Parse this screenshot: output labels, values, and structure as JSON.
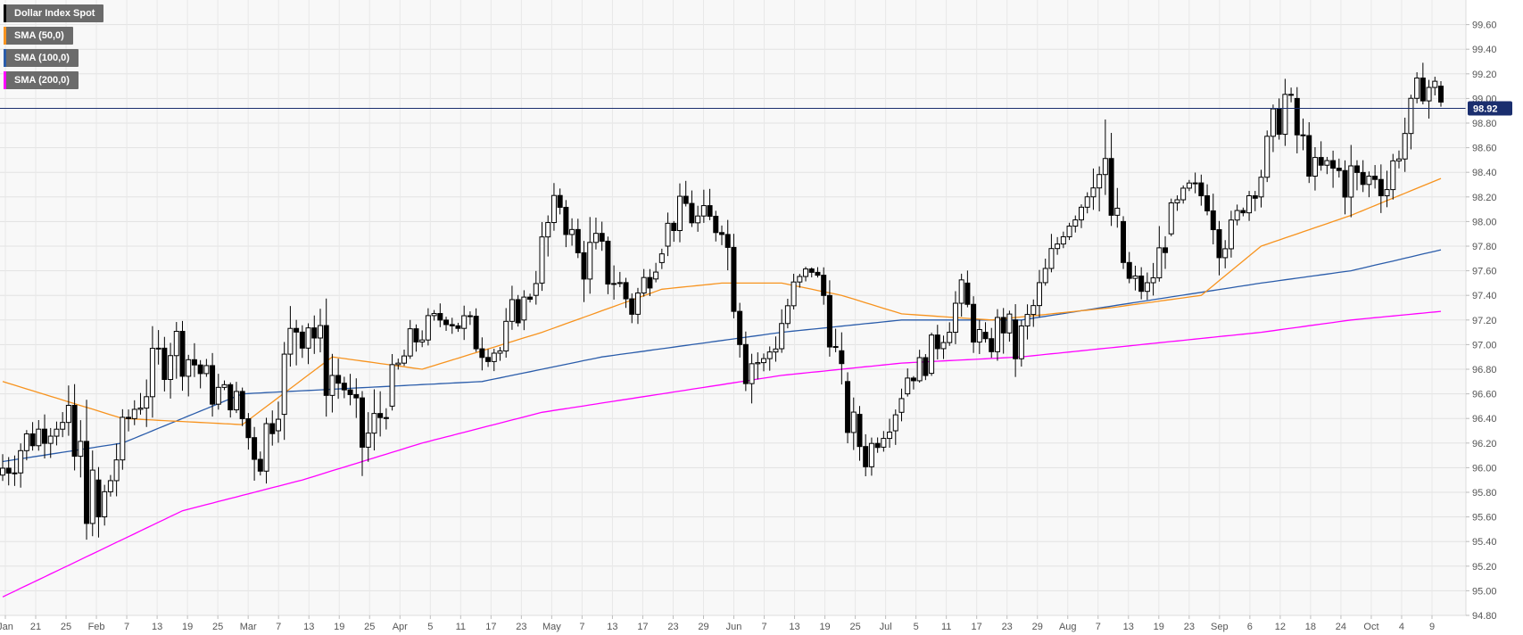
{
  "chart_data": {
    "type": "candlestick",
    "ylim": [
      94.8,
      99.8
    ],
    "ytick_labels": [
      "94.80",
      "95.00",
      "95.20",
      "95.40",
      "95.60",
      "95.80",
      "96.00",
      "96.20",
      "96.40",
      "96.60",
      "96.80",
      "97.00",
      "97.20",
      "97.40",
      "97.60",
      "97.80",
      "98.00",
      "98.20",
      "98.40",
      "98.60",
      "98.80",
      "99.00",
      "99.20",
      "99.40",
      "99.60"
    ],
    "xtick_labels": [
      "Jan",
      "21",
      "25",
      "Feb",
      "7",
      "13",
      "19",
      "25",
      "Mar",
      "7",
      "13",
      "19",
      "25",
      "Apr",
      "5",
      "11",
      "17",
      "23",
      "May",
      "7",
      "13",
      "17",
      "23",
      "29",
      "Jun",
      "7",
      "13",
      "19",
      "25",
      "Jul",
      "5",
      "11",
      "17",
      "23",
      "29",
      "Aug",
      "7",
      "13",
      "19",
      "23",
      "Sep",
      "6",
      "12",
      "18",
      "24",
      "Oct",
      "4",
      "9"
    ],
    "grid": true,
    "current_price": 98.92,
    "current_price_label": "98.92",
    "legend": [
      {
        "name": "Dollar Index Spot",
        "color": "#000000"
      },
      {
        "name": "SMA (50,0)",
        "color": "#f7931e"
      },
      {
        "name": "SMA (100,0)",
        "color": "#2a5caa"
      },
      {
        "name": "SMA (200,0)",
        "color": "#ff00ff"
      }
    ],
    "ohlc_anchors": [
      [
        0,
        95.7,
        96.3
      ],
      [
        4,
        96.0,
        96.45
      ],
      [
        9,
        96.2,
        96.6
      ],
      [
        12,
        95.4,
        96.7
      ],
      [
        14,
        95.3,
        96.5
      ],
      [
        16,
        95.2,
        95.9
      ],
      [
        19,
        95.8,
        96.4
      ],
      [
        21,
        96.2,
        96.6
      ],
      [
        26,
        96.5,
        97.2
      ],
      [
        28,
        96.7,
        97.4
      ],
      [
        32,
        96.6,
        97.1
      ],
      [
        35,
        96.4,
        96.85
      ],
      [
        39,
        96.4,
        96.7
      ],
      [
        41,
        95.9,
        96.6
      ],
      [
        43,
        95.8,
        96.5
      ],
      [
        46,
        96.3,
        96.9
      ],
      [
        49,
        96.7,
        97.7
      ],
      [
        51,
        96.9,
        97.55
      ],
      [
        54,
        96.4,
        97.2
      ],
      [
        57,
        96.5,
        96.8
      ],
      [
        60,
        95.8,
        96.6
      ],
      [
        62,
        95.9,
        96.7
      ],
      [
        65,
        96.5,
        96.9
      ],
      [
        68,
        96.8,
        97.2
      ],
      [
        71,
        97.0,
        97.3
      ],
      [
        74,
        97.1,
        97.4
      ],
      [
        77,
        96.9,
        97.4
      ],
      [
        80,
        96.8,
        97.2
      ],
      [
        83,
        96.8,
        97.1
      ],
      [
        85,
        97.0,
        97.45
      ],
      [
        88,
        97.3,
        97.5
      ],
      [
        91,
        97.6,
        98.3
      ],
      [
        93,
        98.0,
        98.3
      ],
      [
        96,
        97.4,
        98.0
      ],
      [
        99,
        97.3,
        98.1
      ],
      [
        102,
        97.3,
        97.8
      ],
      [
        105,
        97.1,
        97.5
      ],
      [
        108,
        97.4,
        97.8
      ],
      [
        111,
        97.8,
        98.1
      ],
      [
        114,
        97.9,
        98.35
      ],
      [
        117,
        97.6,
        98.25
      ],
      [
        120,
        97.8,
        98.3
      ],
      [
        122,
        97.1,
        97.9
      ],
      [
        124,
        96.5,
        97.3
      ],
      [
        127,
        96.7,
        97.0
      ],
      [
        129,
        96.8,
        97.3
      ],
      [
        132,
        97.3,
        97.6
      ],
      [
        135,
        97.5,
        97.75
      ],
      [
        137,
        97.2,
        97.6
      ],
      [
        139,
        96.6,
        97.2
      ],
      [
        141,
        96.1,
        96.7
      ],
      [
        144,
        95.9,
        96.3
      ],
      [
        146,
        96.1,
        96.4
      ],
      [
        149,
        96.3,
        96.7
      ],
      [
        151,
        96.6,
        96.9
      ],
      [
        154,
        96.7,
        97.0
      ],
      [
        157,
        96.9,
        97.4
      ],
      [
        160,
        97.2,
        97.6
      ],
      [
        162,
        96.9,
        97.4
      ],
      [
        164,
        96.8,
        97.1
      ],
      [
        167,
        96.9,
        97.5
      ],
      [
        169,
        96.7,
        97.2
      ],
      [
        172,
        97.1,
        97.5
      ],
      [
        175,
        97.5,
        97.9
      ],
      [
        177,
        97.8,
        98.1
      ],
      [
        180,
        98.0,
        98.3
      ],
      [
        182,
        98.1,
        98.9
      ],
      [
        184,
        97.7,
        98.8
      ],
      [
        186,
        97.4,
        98.3
      ],
      [
        188,
        97.3,
        97.7
      ],
      [
        191,
        97.3,
        97.6
      ],
      [
        193,
        97.4,
        98.0
      ],
      [
        195,
        97.9,
        98.2
      ],
      [
        198,
        98.1,
        98.4
      ],
      [
        201,
        98.0,
        98.4
      ],
      [
        203,
        97.6,
        98.3
      ],
      [
        205,
        97.7,
        98.1
      ],
      [
        207,
        98.0,
        98.3
      ],
      [
        210,
        98.2,
        98.6
      ],
      [
        212,
        98.5,
        99.0
      ],
      [
        214,
        98.7,
        99.3
      ],
      [
        216,
        98.4,
        99.0
      ],
      [
        219,
        98.2,
        98.6
      ],
      [
        222,
        98.1,
        98.7
      ],
      [
        225,
        98.0,
        98.7
      ],
      [
        227,
        98.1,
        98.5
      ],
      [
        229,
        98.2,
        98.6
      ],
      [
        231,
        98.0,
        98.6
      ],
      [
        233,
        98.4,
        98.8
      ],
      [
        235,
        98.6,
        99.1
      ],
      [
        237,
        98.9,
        99.4
      ],
      [
        239,
        98.8,
        99.3
      ],
      [
        240,
        98.9,
        99.1
      ]
    ],
    "sma50": [
      [
        0,
        96.7
      ],
      [
        20,
        96.4
      ],
      [
        40,
        96.35
      ],
      [
        55,
        96.9
      ],
      [
        70,
        96.8
      ],
      [
        90,
        97.1
      ],
      [
        110,
        97.45
      ],
      [
        120,
        97.5
      ],
      [
        130,
        97.5
      ],
      [
        140,
        97.4
      ],
      [
        150,
        97.25
      ],
      [
        165,
        97.2
      ],
      [
        185,
        97.3
      ],
      [
        200,
        97.4
      ],
      [
        210,
        97.8
      ],
      [
        225,
        98.05
      ],
      [
        240,
        98.35
      ]
    ],
    "sma100": [
      [
        0,
        96.05
      ],
      [
        20,
        96.2
      ],
      [
        40,
        96.6
      ],
      [
        60,
        96.65
      ],
      [
        80,
        96.7
      ],
      [
        100,
        96.9
      ],
      [
        115,
        97.0
      ],
      [
        130,
        97.1
      ],
      [
        150,
        97.2
      ],
      [
        170,
        97.2
      ],
      [
        190,
        97.35
      ],
      [
        210,
        97.5
      ],
      [
        225,
        97.6
      ],
      [
        240,
        97.77
      ]
    ],
    "sma200": [
      [
        0,
        94.95
      ],
      [
        15,
        95.3
      ],
      [
        30,
        95.65
      ],
      [
        50,
        95.9
      ],
      [
        70,
        96.2
      ],
      [
        90,
        96.45
      ],
      [
        110,
        96.6
      ],
      [
        130,
        96.75
      ],
      [
        150,
        96.85
      ],
      [
        170,
        96.9
      ],
      [
        190,
        97.0
      ],
      [
        210,
        97.1
      ],
      [
        225,
        97.2
      ],
      [
        240,
        97.27
      ]
    ]
  }
}
